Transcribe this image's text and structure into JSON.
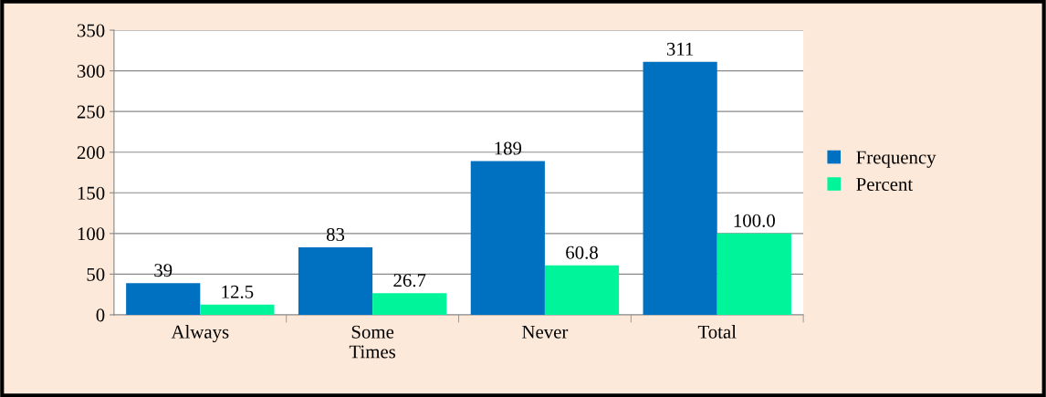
{
  "chart_data": {
    "type": "bar",
    "categories": [
      "Always",
      "Some Times",
      "Never",
      "Total"
    ],
    "series": [
      {
        "name": "Frequency",
        "color": "#0070c0",
        "values": [
          39,
          83,
          189,
          311
        ]
      },
      {
        "name": "Percent",
        "color": "#00f59b",
        "values": [
          12.5,
          26.7,
          60.8,
          100.0
        ],
        "value_labels": [
          "12.5",
          "26.7",
          "60.8",
          "100.0"
        ]
      }
    ],
    "ylim": [
      0,
      350
    ],
    "yticks": [
      0,
      50,
      100,
      150,
      200,
      250,
      300,
      350
    ],
    "grid": "y",
    "legend": "right",
    "data_labels": true
  }
}
